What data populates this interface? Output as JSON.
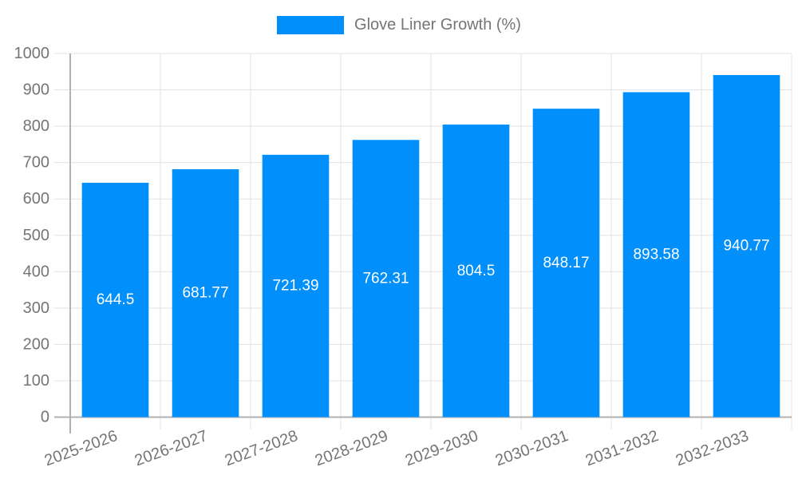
{
  "legend": {
    "items": [
      {
        "label": "Glove Liner Growth (%)",
        "color": "#008FFB"
      }
    ]
  },
  "chart_data": {
    "type": "bar",
    "title": "",
    "categories": [
      "2025-2026",
      "2026-2027",
      "2027-2028",
      "2028-2029",
      "2029-2030",
      "2030-2031",
      "2031-2032",
      "2032-2033"
    ],
    "series": [
      {
        "name": "Glove Liner Growth (%)",
        "values": [
          644.5,
          681.77,
          721.39,
          762.31,
          804.5,
          848.17,
          893.58,
          940.77
        ],
        "labels": [
          "644.5",
          "681.77",
          "721.39",
          "762.31",
          "804.5",
          "848.17",
          "893.58",
          "940.77"
        ]
      }
    ],
    "xlabel": "",
    "ylabel": "",
    "ylim": [
      0,
      1000
    ],
    "yticks": [
      0,
      100,
      200,
      300,
      400,
      500,
      600,
      700,
      800,
      900,
      1000
    ],
    "grid": true,
    "legend_position": "top",
    "x_label_rotation": -20,
    "colors": {
      "bar": "#008FFB",
      "data_label": "#FFFFFF",
      "axis_text": "#757575",
      "grid_line": "#E3E3E3",
      "axis_line": "#B1B1B1"
    }
  }
}
